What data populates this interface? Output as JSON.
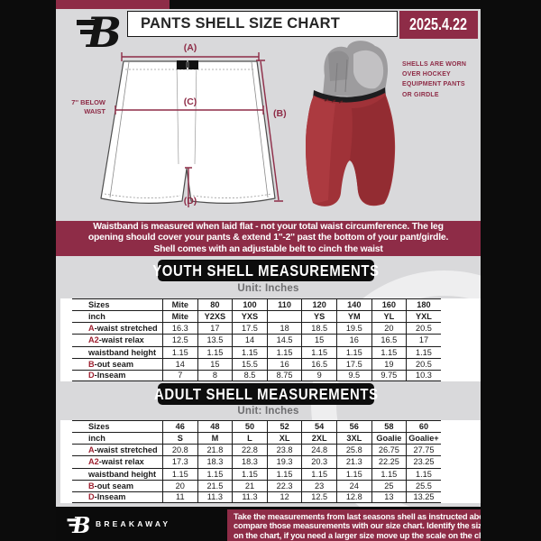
{
  "header": {
    "title": "PANTS SHELL SIZE CHART",
    "date": "2025.4.22"
  },
  "diagram": {
    "a_label": "(A)",
    "b_label": "(B)",
    "c_label": "(C)",
    "d_label": "(D)",
    "below_waist_line1": "7'' BELOW",
    "below_waist_line2": "WAIST",
    "caption_line1": "SHELLS ARE WORN",
    "caption_line2": "OVER HOCKEY",
    "caption_line3": "EQUIPMENT PANTS",
    "caption_line4": "OR GIRDLE"
  },
  "banner": {
    "line1": "Waistband is measured when laid flat - not your total waist circumference. The leg",
    "line2": "opening should cover your pants & extend 1''-2'' past the bottom of your pant/girdle.",
    "line3": "Shell comes with an adjustable belt to cinch the waist"
  },
  "youth": {
    "title": "YOUTH SHELL MEASUREMENTS",
    "unit": "Unit: Inches",
    "table": {
      "rows": [
        {
          "prefix": "",
          "label": "Sizes",
          "values": [
            "Mite",
            "80",
            "100",
            "110",
            "120",
            "140",
            "160",
            "180"
          ]
        },
        {
          "prefix": "",
          "label": "inch",
          "values": [
            "Mite",
            "Y2XS",
            "YXS",
            "",
            "YS",
            "YM",
            "YL",
            "YXL"
          ]
        },
        {
          "prefix": "A",
          "label": "-waist stretched",
          "values": [
            "16.3",
            "17",
            "17.5",
            "18",
            "18.5",
            "19.5",
            "20",
            "20.5"
          ]
        },
        {
          "prefix": "A2",
          "label": "-waist relax",
          "values": [
            "12.5",
            "13.5",
            "14",
            "14.5",
            "15",
            "16",
            "16.5",
            "17"
          ]
        },
        {
          "prefix": "",
          "label": "waistband height",
          "values": [
            "1.15",
            "1.15",
            "1.15",
            "1.15",
            "1.15",
            "1.15",
            "1.15",
            "1.15"
          ]
        },
        {
          "prefix": "B",
          "label": "-out seam",
          "values": [
            "14",
            "15",
            "15.5",
            "16",
            "16.5",
            "17.5",
            "19",
            "20.5"
          ]
        },
        {
          "prefix": "D",
          "label": "-Inseam",
          "values": [
            "7",
            "8",
            "8.5",
            "8.75",
            "9",
            "9.5",
            "9.75",
            "10.3"
          ]
        }
      ]
    }
  },
  "adult": {
    "title": "ADULT SHELL MEASUREMENTS",
    "unit": "Unit: Inches",
    "table": {
      "rows": [
        {
          "prefix": "",
          "label": "Sizes",
          "values": [
            "46",
            "48",
            "50",
            "52",
            "54",
            "56",
            "58",
            "60"
          ]
        },
        {
          "prefix": "",
          "label": "inch",
          "values": [
            "S",
            "M",
            "L",
            "XL",
            "2XL",
            "3XL",
            "Goalie",
            "Goalie+"
          ]
        },
        {
          "prefix": "A",
          "label": "-waist stretched",
          "values": [
            "20.8",
            "21.8",
            "22.8",
            "23.8",
            "24.8",
            "25.8",
            "26.75",
            "27.75"
          ]
        },
        {
          "prefix": "A2",
          "label": "-waist relax",
          "values": [
            "17.3",
            "18.3",
            "18.3",
            "19.3",
            "20.3",
            "21.3",
            "22.25",
            "23.25"
          ]
        },
        {
          "prefix": "",
          "label": "waistband height",
          "values": [
            "1.15",
            "1.15",
            "1.15",
            "1.15",
            "1.15",
            "1.15",
            "1.15",
            "1.15"
          ]
        },
        {
          "prefix": "B",
          "label": "-out seam",
          "values": [
            "20",
            "21.5",
            "21",
            "22.3",
            "23",
            "24",
            "25",
            "25.5"
          ]
        },
        {
          "prefix": "D",
          "label": "-Inseam",
          "values": [
            "11",
            "11.3",
            "11.3",
            "12",
            "12.5",
            "12.8",
            "13",
            "13.25"
          ]
        }
      ]
    }
  },
  "footer": {
    "brand": "BREAKAWAY",
    "line1": "Take the measurements from last seasons shell as instructed above",
    "line2": "compare those measurements  with our size chart. Identify the size",
    "line3": "on the chart, if you need a larger size move up the scale on the chart"
  },
  "colors": {
    "maroon": "#8e2c47",
    "shell_red": "#a03238",
    "page_bg": "#d9d9db",
    "black": "#0c0c0c"
  }
}
